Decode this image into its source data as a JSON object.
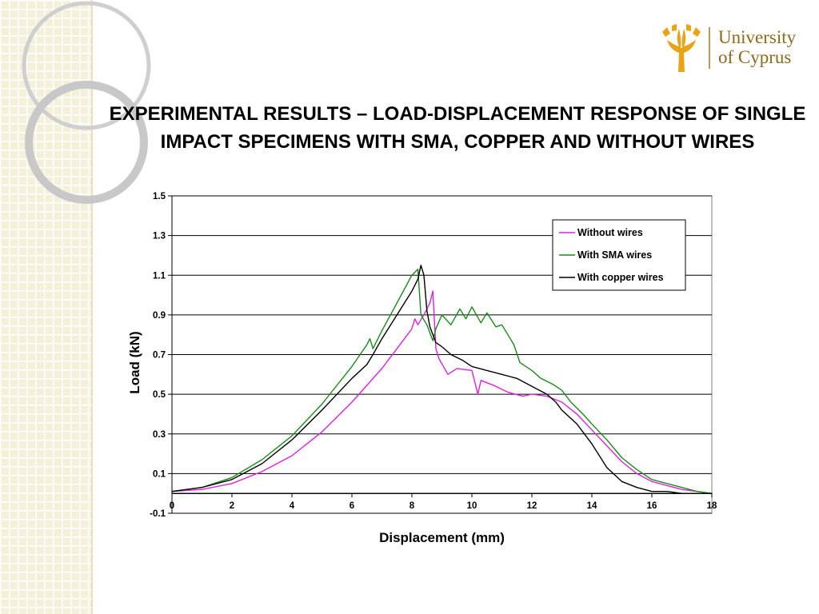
{
  "slide": {
    "title": "EXPERIMENTAL RESULTS – LOAD-DISPLACEMENT RESPONSE OF SINGLE IMPACT SPECIMENS WITH SMA, COPPER AND WITHOUT WIRES"
  },
  "logo": {
    "line1": "University",
    "line2": "of Cyprus",
    "color": "#8a6a1f",
    "icon": "cyprus-tree-emblem"
  },
  "colors": {
    "band": "#f3f1da",
    "deco_ring": "#cccccc"
  },
  "chart_data": {
    "type": "line",
    "xlabel": "Displacement (mm)",
    "ylabel": "Load (kN)",
    "xlim": [
      0,
      18
    ],
    "ylim": [
      -0.1,
      1.5
    ],
    "xticks": [
      0,
      2,
      4,
      6,
      8,
      10,
      12,
      14,
      16,
      18
    ],
    "yticks": [
      -0.1,
      0.1,
      0.3,
      0.5,
      0.7,
      0.9,
      1.1,
      1.3,
      1.5
    ],
    "grid": "horizontal",
    "legend_position": "top-right",
    "series": [
      {
        "name": "Without wires",
        "color": "#e020e0",
        "points": [
          [
            0,
            0.01
          ],
          [
            1,
            0.02
          ],
          [
            2,
            0.05
          ],
          [
            3,
            0.11
          ],
          [
            4,
            0.19
          ],
          [
            5,
            0.31
          ],
          [
            6,
            0.46
          ],
          [
            7,
            0.63
          ],
          [
            7.5,
            0.73
          ],
          [
            8,
            0.83
          ],
          [
            8.1,
            0.88
          ],
          [
            8.2,
            0.85
          ],
          [
            8.4,
            0.9
          ],
          [
            8.6,
            0.96
          ],
          [
            8.7,
            1.02
          ],
          [
            8.8,
            0.73
          ],
          [
            8.9,
            0.68
          ],
          [
            9.2,
            0.6
          ],
          [
            9.5,
            0.63
          ],
          [
            10,
            0.62
          ],
          [
            10.2,
            0.5
          ],
          [
            10.3,
            0.57
          ],
          [
            10.8,
            0.54
          ],
          [
            11.2,
            0.51
          ],
          [
            11.7,
            0.49
          ],
          [
            12,
            0.5
          ],
          [
            12.5,
            0.49
          ],
          [
            13,
            0.46
          ],
          [
            13.5,
            0.4
          ],
          [
            14,
            0.32
          ],
          [
            14.5,
            0.24
          ],
          [
            15,
            0.16
          ],
          [
            15.5,
            0.1
          ],
          [
            16,
            0.06
          ],
          [
            16.5,
            0.04
          ],
          [
            17,
            0.02
          ],
          [
            17.5,
            0.01
          ],
          [
            18,
            0.0
          ]
        ]
      },
      {
        "name": "With SMA wires",
        "color": "#1a8a1a",
        "points": [
          [
            0,
            0.01
          ],
          [
            1,
            0.03
          ],
          [
            2,
            0.08
          ],
          [
            3,
            0.17
          ],
          [
            4,
            0.29
          ],
          [
            5,
            0.45
          ],
          [
            6,
            0.64
          ],
          [
            6.5,
            0.75
          ],
          [
            6.6,
            0.78
          ],
          [
            6.7,
            0.73
          ],
          [
            7,
            0.82
          ],
          [
            7.5,
            0.96
          ],
          [
            8,
            1.1
          ],
          [
            8.2,
            1.13
          ],
          [
            8.3,
            0.9
          ],
          [
            8.5,
            0.85
          ],
          [
            8.7,
            0.77
          ],
          [
            8.8,
            0.83
          ],
          [
            9,
            0.9
          ],
          [
            9.3,
            0.85
          ],
          [
            9.6,
            0.93
          ],
          [
            9.8,
            0.88
          ],
          [
            10,
            0.94
          ],
          [
            10.3,
            0.86
          ],
          [
            10.5,
            0.91
          ],
          [
            10.8,
            0.84
          ],
          [
            11,
            0.85
          ],
          [
            11.2,
            0.8
          ],
          [
            11.4,
            0.75
          ],
          [
            11.6,
            0.66
          ],
          [
            12,
            0.62
          ],
          [
            12.3,
            0.58
          ],
          [
            12.7,
            0.55
          ],
          [
            13,
            0.52
          ],
          [
            13.3,
            0.46
          ],
          [
            13.7,
            0.4
          ],
          [
            14,
            0.35
          ],
          [
            14.5,
            0.27
          ],
          [
            15,
            0.18
          ],
          [
            15.5,
            0.12
          ],
          [
            16,
            0.07
          ],
          [
            16.5,
            0.05
          ],
          [
            17,
            0.03
          ],
          [
            17.5,
            0.01
          ],
          [
            18,
            0.0
          ]
        ]
      },
      {
        "name": "With copper wires",
        "color": "#000000",
        "points": [
          [
            0,
            0.01
          ],
          [
            1,
            0.03
          ],
          [
            2,
            0.07
          ],
          [
            3,
            0.15
          ],
          [
            4,
            0.27
          ],
          [
            5,
            0.42
          ],
          [
            6,
            0.58
          ],
          [
            6.5,
            0.65
          ],
          [
            6.7,
            0.7
          ],
          [
            7,
            0.78
          ],
          [
            7.5,
            0.9
          ],
          [
            8,
            1.02
          ],
          [
            8.2,
            1.08
          ],
          [
            8.3,
            1.15
          ],
          [
            8.4,
            1.1
          ],
          [
            8.5,
            0.92
          ],
          [
            8.6,
            0.84
          ],
          [
            8.8,
            0.76
          ],
          [
            9,
            0.74
          ],
          [
            9.3,
            0.7
          ],
          [
            9.7,
            0.67
          ],
          [
            10,
            0.64
          ],
          [
            10.5,
            0.62
          ],
          [
            11,
            0.6
          ],
          [
            11.5,
            0.58
          ],
          [
            12,
            0.54
          ],
          [
            12.5,
            0.5
          ],
          [
            12.8,
            0.46
          ],
          [
            13,
            0.42
          ],
          [
            13.5,
            0.35
          ],
          [
            14,
            0.25
          ],
          [
            14.5,
            0.13
          ],
          [
            15,
            0.06
          ],
          [
            15.5,
            0.03
          ],
          [
            16,
            0.01
          ],
          [
            16.5,
            0.01
          ],
          [
            17,
            0.0
          ],
          [
            18,
            0.0
          ]
        ]
      }
    ]
  }
}
